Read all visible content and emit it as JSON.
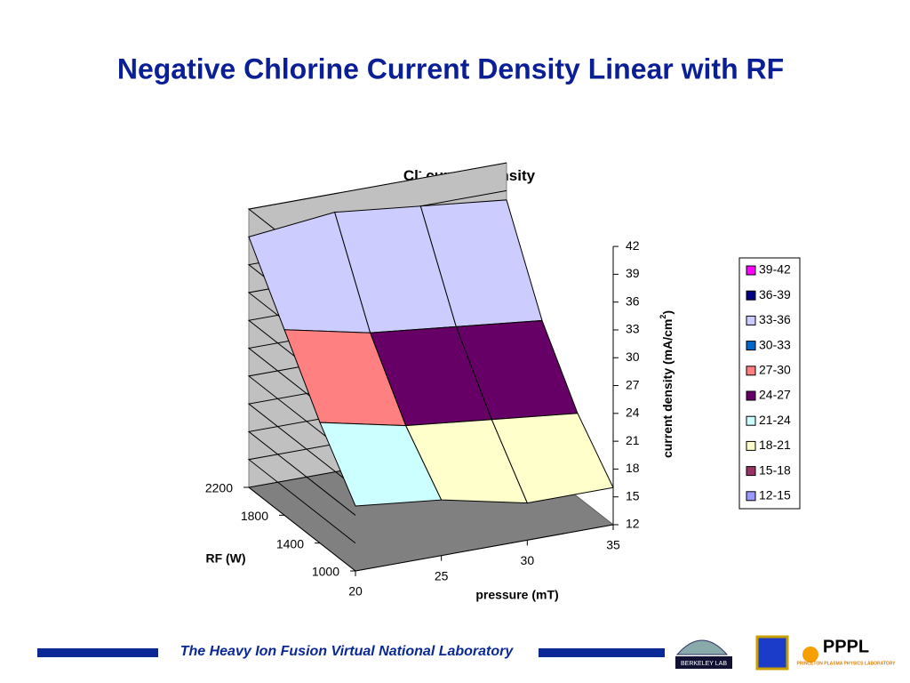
{
  "page_title": "Negative Chlorine Current Density Linear with RF",
  "chart_data": {
    "type": "surface",
    "title_parts": [
      "Cl",
      "-",
      " current density"
    ],
    "x_label": "pressure (mT)",
    "y_label": "RF (W)",
    "z_label_parts": [
      "current density (mA/cm",
      "2",
      ")"
    ],
    "x": [
      20,
      25,
      30,
      35
    ],
    "y": [
      1000,
      1400,
      1800,
      2200
    ],
    "z": [
      [
        19,
        18,
        16,
        16
      ],
      [
        25,
        23,
        22,
        21
      ],
      [
        32,
        30,
        29,
        28
      ],
      [
        39,
        40,
        39,
        38
      ]
    ],
    "xlim": [
      20,
      35
    ],
    "xticks": [
      20,
      25,
      30,
      35
    ],
    "ylim": [
      1000,
      2200
    ],
    "yticks": [
      1000,
      1400,
      1800,
      2200
    ],
    "zlim": [
      12,
      42
    ],
    "zticks": [
      12,
      15,
      18,
      21,
      24,
      27,
      30,
      33,
      36,
      39,
      42
    ],
    "legend": [
      {
        "name": "39-42",
        "color": "#ff00ff"
      },
      {
        "name": "36-39",
        "color": "#000080"
      },
      {
        "name": "33-36",
        "color": "#ccccff"
      },
      {
        "name": "30-33",
        "color": "#0066cc"
      },
      {
        "name": "27-30",
        "color": "#ff8080"
      },
      {
        "name": "24-27",
        "color": "#660066"
      },
      {
        "name": "21-24",
        "color": "#ccffff"
      },
      {
        "name": "18-21",
        "color": "#ffffcc"
      },
      {
        "name": "15-18",
        "color": "#993366"
      },
      {
        "name": "12-15",
        "color": "#9999ff"
      }
    ]
  },
  "footer": {
    "text": "The Heavy Ion Fusion Virtual National Laboratory",
    "logo_berkeley": "BERKELEY LAB",
    "logo_pppl": "PPPL",
    "logo_pppl_sub": "PRINCETON PLASMA PHYSICS LABORATORY"
  }
}
